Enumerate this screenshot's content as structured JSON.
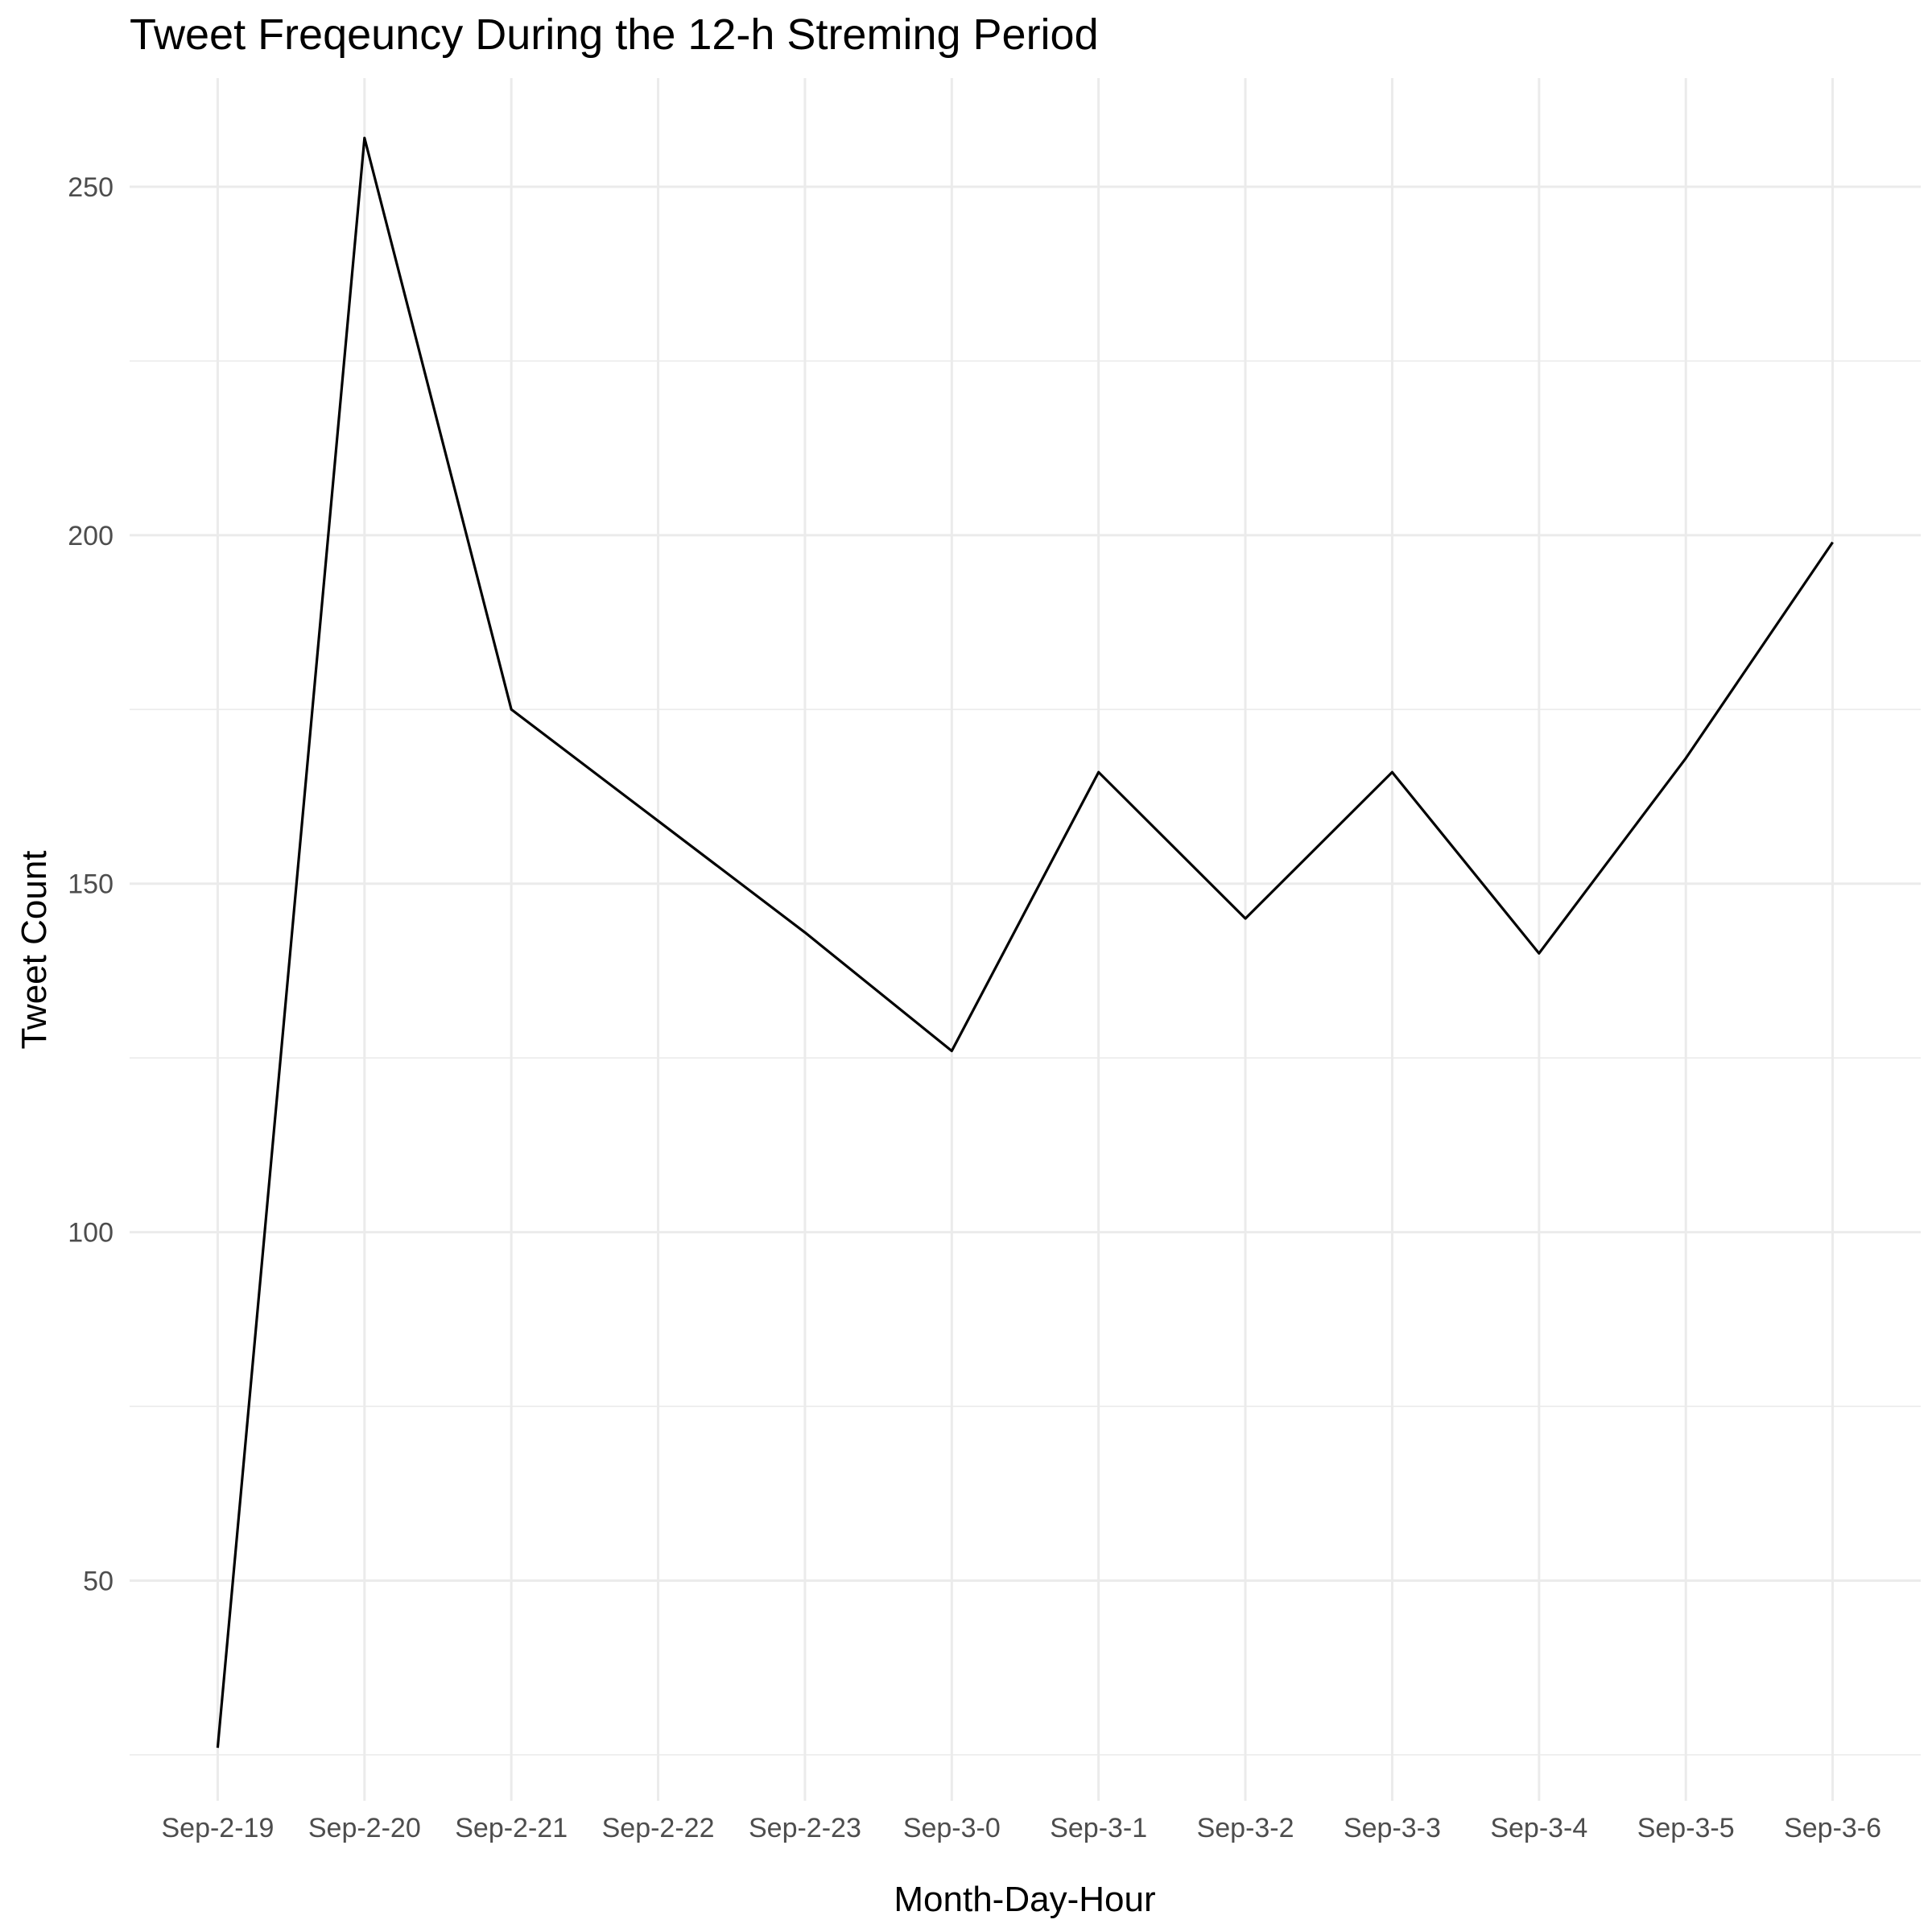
{
  "chart_data": {
    "type": "line",
    "title": "Tweet Freqeuncy During the 12-h Streming Period",
    "xlabel": "Month-Day-Hour",
    "ylabel": "Tweet Count",
    "categories": [
      "Sep-2-19",
      "Sep-2-20",
      "Sep-2-21",
      "Sep-2-22",
      "Sep-2-23",
      "Sep-3-0",
      "Sep-3-1",
      "Sep-3-2",
      "Sep-3-3",
      "Sep-3-4",
      "Sep-3-5",
      "Sep-3-6"
    ],
    "series": [
      {
        "values": [
          26,
          257,
          175,
          159,
          143,
          126,
          166,
          145,
          166,
          140,
          168,
          199
        ]
      }
    ],
    "ylim": [
      18.4,
      265.6
    ],
    "yticks": [
      50,
      100,
      150,
      200,
      250
    ],
    "yticks_minor": [
      25,
      75,
      125,
      175,
      225
    ],
    "grid": true,
    "legend": "none",
    "line_color": "#000000",
    "grid_color": "#ebebeb",
    "tick_label_color": "#4d4d4d"
  }
}
